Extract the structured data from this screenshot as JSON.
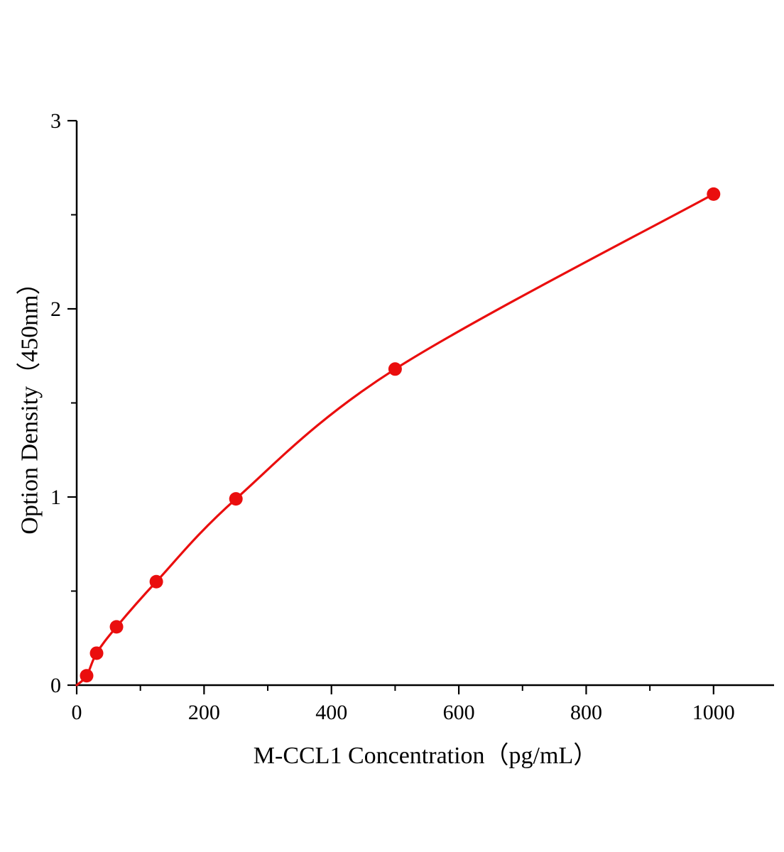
{
  "chart_data": {
    "type": "scatter",
    "title": "",
    "xlabel": "M-CCL1 Concentration（pg/mL）",
    "ylabel": "Option Density（450nm）",
    "x": [
      15.6,
      31.25,
      62.5,
      125,
      250,
      500,
      1000
    ],
    "y": [
      0.05,
      0.17,
      0.31,
      0.55,
      0.99,
      1.68,
      2.61
    ],
    "curve_start": [
      0,
      0.0
    ],
    "xlim": [
      0,
      1095
    ],
    "ylim": [
      0,
      3
    ],
    "x_ticks": [
      0,
      200,
      400,
      600,
      800,
      1000
    ],
    "y_ticks": [
      0,
      1,
      2,
      3
    ],
    "x_minor_step": 100,
    "y_minor_step": 0.5,
    "grid": false,
    "legend": null,
    "colors": {
      "curve": "#ea0e0e",
      "point": "#ea0e0e",
      "axis": "#000000"
    }
  }
}
